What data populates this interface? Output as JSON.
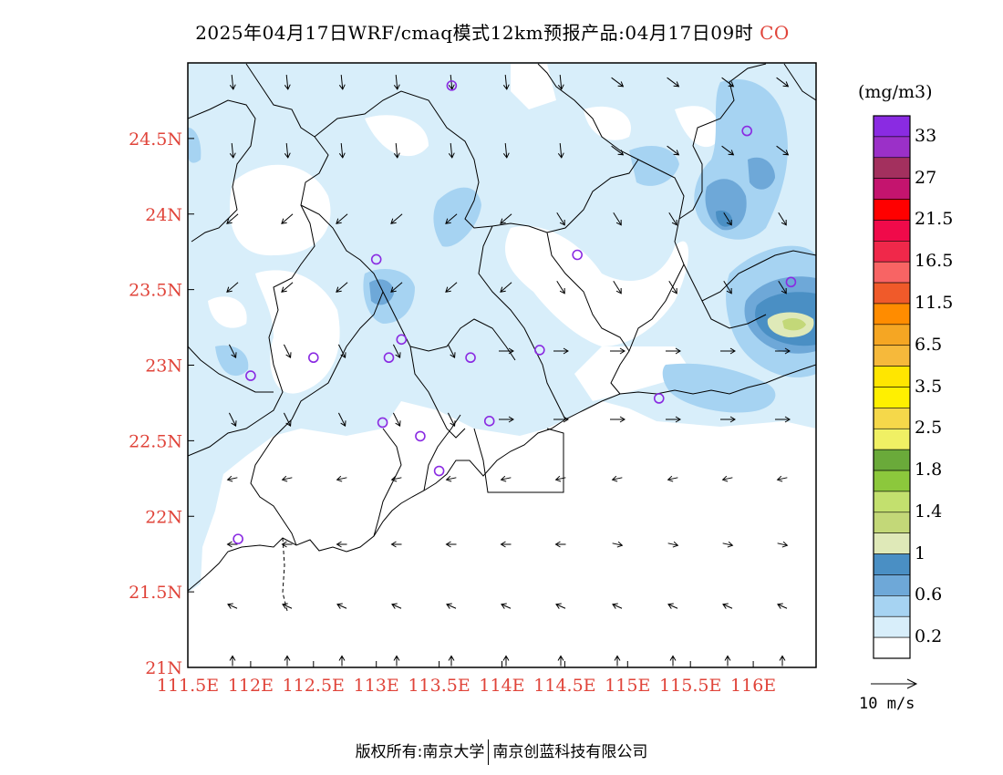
{
  "title": {
    "main": "2025年04月17日WRF/cmaq模式12km预报产品:04月17日09时",
    "species": "CO"
  },
  "axes": {
    "lat_labels": [
      "24.5N",
      "24N",
      "23.5N",
      "23N",
      "22.5N",
      "22N",
      "21.5N",
      "21N"
    ],
    "lon_labels": [
      "111.5E",
      "112E",
      "112.5E",
      "113E",
      "113.5E",
      "114E",
      "114.5E",
      "115E",
      "115.5E",
      "116E"
    ],
    "label_color": "#e0443a"
  },
  "legend": {
    "units": "(mg/m3)",
    "labels": [
      "33",
      "27",
      "21.5",
      "16.5",
      "11.5",
      "6.5",
      "3.5",
      "2.5",
      "1.8",
      "1.4",
      "1",
      "0.6",
      "0.2"
    ],
    "colors_top_to_bottom": [
      "#8a2be2",
      "#9b30c8",
      "#a3305e",
      "#c4146e",
      "#ff0000",
      "#f00a4a",
      "#f0284a",
      "#f86464",
      "#f05a2a",
      "#ff8c00",
      "#f5a623",
      "#f6b93b",
      "#ffe600",
      "#fff000",
      "#f5d84a",
      "#f0f064",
      "#6aaa3a",
      "#8cc83c",
      "#c3e06e",
      "#c3d878",
      "#dfe9b8",
      "#4a8fc4",
      "#6ea8d8",
      "#a6d3f2",
      "#d8eefa",
      "#ffffff"
    ]
  },
  "wind_vector": {
    "reference_label": "10 m/s"
  },
  "footer": {
    "left": "版权所有:南京大学",
    "right": "南京创蓝科技有限公司"
  },
  "stations_icon": "circle-marker-icon",
  "chart_data": {
    "type": "heatmap",
    "title": "2025年04月17日WRF/cmaq模式12km预报产品:04月17日09时 CO",
    "xlabel": "",
    "ylabel": "",
    "xlim": [
      111.5,
      116.5
    ],
    "ylim": [
      21.0,
      25.0
    ],
    "x_ticks": [
      111.5,
      112.0,
      112.5,
      113.0,
      113.5,
      114.0,
      114.5,
      115.0,
      115.5,
      116.0
    ],
    "y_ticks": [
      21.0,
      21.5,
      22.0,
      22.5,
      23.0,
      23.5,
      24.0,
      24.5
    ],
    "levels": [
      0.2,
      0.6,
      1,
      1.4,
      1.8,
      2.5,
      3.5,
      6.5,
      11.5,
      16.5,
      21.5,
      27,
      33
    ],
    "stations": [
      {
        "lon": 113.6,
        "lat": 24.85
      },
      {
        "lon": 115.95,
        "lat": 24.55
      },
      {
        "lon": 113.0,
        "lat": 23.7
      },
      {
        "lon": 114.6,
        "lat": 23.73
      },
      {
        "lon": 116.3,
        "lat": 23.55
      },
      {
        "lon": 113.2,
        "lat": 23.17
      },
      {
        "lon": 112.5,
        "lat": 23.05
      },
      {
        "lon": 113.1,
        "lat": 23.05
      },
      {
        "lon": 113.75,
        "lat": 23.05
      },
      {
        "lon": 114.3,
        "lat": 23.1
      },
      {
        "lon": 112.0,
        "lat": 22.93
      },
      {
        "lon": 115.25,
        "lat": 22.78
      },
      {
        "lon": 113.05,
        "lat": 22.62
      },
      {
        "lon": 113.35,
        "lat": 22.53
      },
      {
        "lon": 113.9,
        "lat": 22.63
      },
      {
        "lon": 113.5,
        "lat": 22.3
      },
      {
        "lon": 111.9,
        "lat": 21.85
      }
    ]
  }
}
